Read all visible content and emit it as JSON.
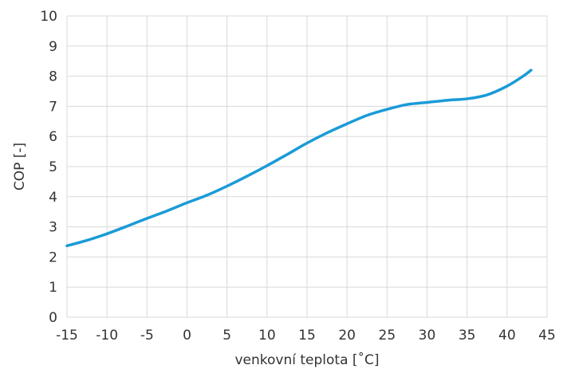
{
  "chart_data": {
    "type": "line",
    "title": "",
    "xlabel": "venkovní teplota [˚C]",
    "ylabel": "COP [-]",
    "xlim": [
      -15,
      45
    ],
    "ylim": [
      0,
      10
    ],
    "xticks": [
      -15,
      -10,
      -5,
      0,
      5,
      10,
      15,
      20,
      25,
      30,
      35,
      40,
      45
    ],
    "yticks": [
      0,
      1,
      2,
      3,
      4,
      5,
      6,
      7,
      8,
      9,
      10
    ],
    "grid": true,
    "legend": "none",
    "series": [
      {
        "color": "#1a9bd7",
        "x": [
          -15,
          -12.5,
          -10,
          -7.5,
          -5,
          -2.5,
          0,
          2.5,
          5,
          7.5,
          10,
          12.5,
          15,
          17.5,
          20,
          22.5,
          25,
          27.5,
          30,
          32.5,
          35,
          37.5,
          40,
          42,
          43
        ],
        "y": [
          2.37,
          2.55,
          2.77,
          3.02,
          3.28,
          3.53,
          3.8,
          4.05,
          4.35,
          4.68,
          5.03,
          5.4,
          5.78,
          6.12,
          6.42,
          6.7,
          6.9,
          7.06,
          7.13,
          7.2,
          7.25,
          7.38,
          7.67,
          8.0,
          8.2
        ]
      }
    ]
  }
}
